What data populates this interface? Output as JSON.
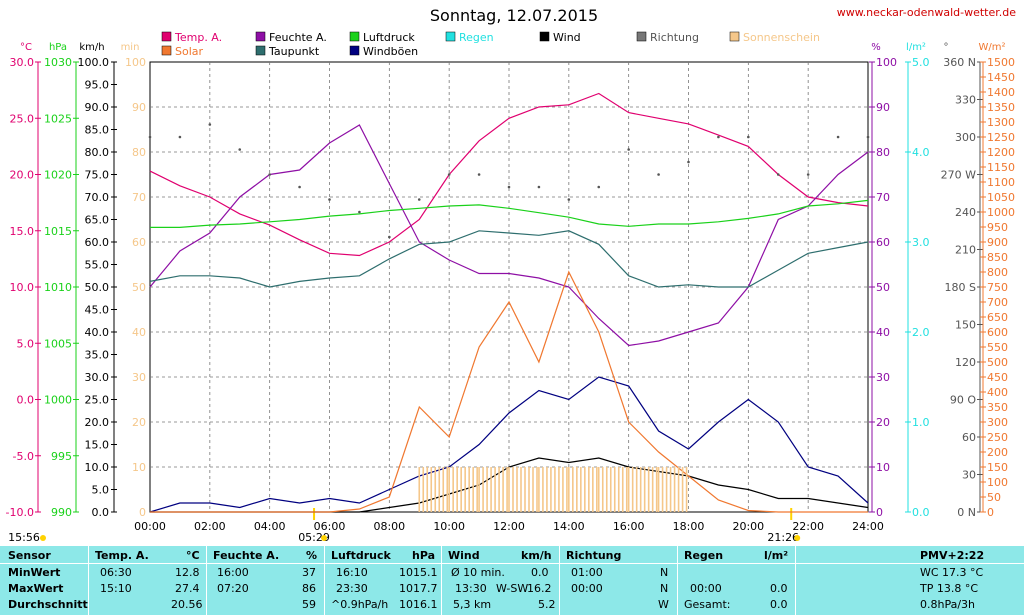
{
  "header": {
    "title": "Sonntag, 12.07.2015",
    "url": "www.neckar-odenwald-wetter.de"
  },
  "colors": {
    "temp": "#e0006f",
    "feuchte": "#8e0fa5",
    "luftdruck": "#1ad11a",
    "regen": "#22e0e0",
    "wind": "#000000",
    "richtung": "#555555",
    "sonnenschein": "#f5c78a",
    "solar": "#f07830",
    "taupunkt": "#2e6e6e",
    "windboeen": "#000080",
    "grid": "#666666"
  },
  "legend": [
    {
      "label": "Temp. A.",
      "color": "#e0006f"
    },
    {
      "label": "Feuchte A.",
      "color": "#8e0fa5"
    },
    {
      "label": "Luftdruck",
      "color": "#1ad11a"
    },
    {
      "label": "Regen",
      "color": "#22e0e0"
    },
    {
      "label": "Wind",
      "color": "#000000"
    },
    {
      "label": "Richtung",
      "color": "#777777"
    },
    {
      "label": "Sonnenschein",
      "color": "#f5c78a"
    },
    {
      "label": "Solar",
      "color": "#f07830"
    },
    {
      "label": "Taupunkt",
      "color": "#2e6e6e"
    },
    {
      "label": "Windböen",
      "color": "#000080"
    }
  ],
  "axes": {
    "units": [
      "°C",
      "hPa",
      "km/h",
      "min",
      "%",
      "l/m²",
      "°",
      "W/m²"
    ],
    "temp_ticks": [
      "30.0",
      "25.0",
      "20.0",
      "15.0",
      "10.0",
      "5.0",
      "0.0",
      "-5.0",
      "-10.0"
    ],
    "hpa_ticks": [
      "1030",
      "1025",
      "1020",
      "1015",
      "1010",
      "1005",
      "1000",
      "995",
      "990"
    ],
    "kmh_ticks": [
      "100.0",
      "95.0",
      "90.0",
      "85.0",
      "80.0",
      "75.0",
      "70.0",
      "65.0",
      "60.0",
      "55.0",
      "50.0",
      "45.0",
      "40.0",
      "35.0",
      "30.0",
      "25.0",
      "20.0",
      "15.0",
      "10.0",
      "5.0",
      "0.0"
    ],
    "min_ticks": [
      "100",
      "90",
      "80",
      "70",
      "60",
      "50",
      "40",
      "30",
      "20",
      "10",
      "0"
    ],
    "pct_ticks": [
      "100",
      "90",
      "80",
      "70",
      "60",
      "50",
      "40",
      "30",
      "20",
      "10",
      "0"
    ],
    "lm2_ticks": [
      "5.0",
      "4.0",
      "3.0",
      "2.0",
      "1.0",
      "0.0"
    ],
    "deg_ticks": [
      "360 N",
      "330",
      "300",
      "270 W",
      "240",
      "210",
      "180 S",
      "150",
      "120",
      "90 O",
      "60",
      "30",
      "0 N"
    ],
    "wm2_ticks": [
      "1500",
      "1450",
      "1400",
      "1350",
      "1300",
      "1250",
      "1200",
      "1150",
      "1100",
      "1050",
      "1000",
      "950",
      "900",
      "850",
      "800",
      "750",
      "700",
      "650",
      "600",
      "550",
      "500",
      "450",
      "400",
      "350",
      "300",
      "250",
      "200",
      "150",
      "100",
      "50",
      "0"
    ],
    "time_ticks": [
      "00:00",
      "02:00",
      "04:00",
      "06:00",
      "08:00",
      "10:00",
      "12:00",
      "14:00",
      "16:00",
      "18:00",
      "20:00",
      "22:00",
      "24:00"
    ],
    "sunrise": "05:29",
    "sunset": "21:26",
    "sunshine_duration": "15:56"
  },
  "chart_data": {
    "type": "line",
    "title": "Sonntag, 12.07.2015",
    "x": [
      "00:00",
      "01:00",
      "02:00",
      "03:00",
      "04:00",
      "05:00",
      "06:00",
      "07:00",
      "08:00",
      "09:00",
      "10:00",
      "11:00",
      "12:00",
      "13:00",
      "14:00",
      "15:00",
      "16:00",
      "17:00",
      "18:00",
      "19:00",
      "20:00",
      "21:00",
      "22:00",
      "23:00",
      "24:00"
    ],
    "xlim": [
      "00:00",
      "24:00"
    ],
    "series": [
      {
        "name": "Temp. A.",
        "unit": "°C",
        "ylim": [
          -10,
          30
        ],
        "values": [
          20.3,
          19.0,
          18.0,
          16.5,
          15.5,
          14.2,
          13.0,
          12.8,
          14.0,
          16.0,
          20.0,
          23.0,
          25.0,
          26.0,
          26.2,
          27.2,
          25.5,
          25.0,
          24.5,
          23.5,
          22.5,
          20.0,
          18.0,
          17.5,
          17.2
        ]
      },
      {
        "name": "Feuchte A.",
        "unit": "%",
        "ylim": [
          0,
          100
        ],
        "values": [
          50,
          58,
          62,
          70,
          75,
          76,
          82,
          86,
          73,
          60,
          56,
          53,
          53,
          52,
          50,
          43,
          37,
          38,
          40,
          42,
          50,
          65,
          68,
          75,
          80
        ]
      },
      {
        "name": "Luftdruck",
        "unit": "hPa",
        "ylim": [
          990,
          1030
        ],
        "values": [
          1015.3,
          1015.3,
          1015.5,
          1015.6,
          1015.8,
          1016.0,
          1016.3,
          1016.5,
          1016.8,
          1017.0,
          1017.2,
          1017.3,
          1017.0,
          1016.6,
          1016.2,
          1015.6,
          1015.4,
          1015.6,
          1015.6,
          1015.8,
          1016.1,
          1016.5,
          1017.2,
          1017.4,
          1017.7
        ]
      },
      {
        "name": "Taupunkt",
        "unit": "°C",
        "ylim": [
          -10,
          30
        ],
        "values": [
          10.5,
          11.0,
          11.0,
          10.8,
          10.0,
          10.5,
          10.8,
          11.0,
          12.5,
          13.8,
          14.0,
          15.0,
          14.8,
          14.6,
          15.0,
          13.8,
          11.0,
          10.0,
          10.2,
          10.0,
          10.0,
          11.5,
          13.0,
          13.5,
          14.0
        ]
      },
      {
        "name": "Windböen",
        "unit": "km/h",
        "ylim": [
          0,
          100
        ],
        "values": [
          0,
          2,
          2,
          1,
          3,
          2,
          3,
          2,
          5,
          8,
          10,
          15,
          22,
          27,
          25,
          30,
          28,
          18,
          14,
          20,
          25,
          20,
          10,
          8,
          2
        ]
      },
      {
        "name": "Wind",
        "unit": "km/h",
        "ylim": [
          0,
          100
        ],
        "values": [
          0,
          0,
          0,
          0,
          0,
          0,
          0,
          0,
          1,
          2,
          4,
          6,
          10,
          12,
          11,
          12,
          10,
          9,
          8,
          6,
          5,
          3,
          3,
          2,
          1
        ]
      },
      {
        "name": "Solar",
        "unit": "W/m²",
        "ylim": [
          0,
          1500
        ],
        "values": [
          0,
          0,
          0,
          0,
          0,
          0,
          0,
          10,
          50,
          350,
          250,
          550,
          700,
          500,
          800,
          600,
          300,
          200,
          120,
          40,
          5,
          0,
          0,
          0,
          0
        ]
      },
      {
        "name": "Sonnenschein",
        "unit": "min",
        "ylim": [
          0,
          100
        ],
        "values": [
          0,
          0,
          0,
          0,
          0,
          0,
          0,
          0,
          0,
          10,
          10,
          10,
          10,
          10,
          10,
          10,
          10,
          10,
          0,
          0,
          0,
          0,
          0,
          0,
          0
        ]
      },
      {
        "name": "Richtung",
        "unit": "°",
        "ylim": [
          0,
          360
        ],
        "values": [
          300,
          300,
          310,
          290,
          270,
          260,
          250,
          240,
          220,
          250,
          270,
          270,
          260,
          260,
          250,
          260,
          290,
          270,
          280,
          300,
          300,
          270,
          270,
          300,
          300
        ]
      },
      {
        "name": "Regen",
        "unit": "l/m²",
        "ylim": [
          0,
          5
        ],
        "values": [
          0,
          0,
          0,
          0,
          0,
          0,
          0,
          0,
          0,
          0,
          0,
          0,
          0,
          0,
          0,
          0,
          0,
          0,
          0,
          0,
          0,
          0,
          0,
          0,
          0
        ]
      }
    ]
  },
  "table": {
    "headers": {
      "sensor": "Sensor",
      "temp": "Temp. A.",
      "temp_unit": "°C",
      "feuchte": "Feuchte A.",
      "feuchte_unit": "%",
      "luftdruck": "Luftdruck",
      "luftdruck_unit": "hPa",
      "wind": "Wind",
      "wind_unit": "km/h",
      "richtung": "Richtung",
      "regen": "Regen",
      "regen_unit": "l/m²",
      "pmv": "PMV+2:22"
    },
    "rows": [
      {
        "label": "MinWert",
        "temp_time": "06:30",
        "temp_val": "12.8",
        "feuchte_time": "16:00",
        "feuchte_val": "37",
        "druck_time": "16:10",
        "druck_val": "1015.1",
        "wind_time": "Ø 10 min.",
        "wind_dir": "",
        "wind_val": "0.0",
        "richt_time": "01:00",
        "richt_val": "N",
        "regen_time": "",
        "regen_val": "",
        "extra": "WC 17.3 °C"
      },
      {
        "label": "MaxWert",
        "temp_time": "15:10",
        "temp_val": "27.4",
        "feuchte_time": "07:20",
        "feuchte_val": "86",
        "druck_time": "23:30",
        "druck_val": "1017.7",
        "wind_time": "13:30",
        "wind_dir": "W-SW",
        "wind_val": "16.2",
        "richt_time": "00:00",
        "richt_val": "N",
        "regen_time": "00:00",
        "regen_val": "0.0",
        "extra": "TP 13.8 °C"
      },
      {
        "label": "Durchschnitt",
        "temp_time": "",
        "temp_val": "20.56",
        "feuchte_time": "",
        "feuchte_val": "59",
        "druck_time": "^0.9hPa/h",
        "druck_val": "1016.1",
        "wind_time": "5,3 km",
        "wind_dir": "",
        "wind_val": "5.2",
        "richt_time": "",
        "richt_val": "W",
        "regen_time": "Gesamt:",
        "regen_val": "0.0",
        "extra": "0.8hPa/3h"
      }
    ]
  }
}
